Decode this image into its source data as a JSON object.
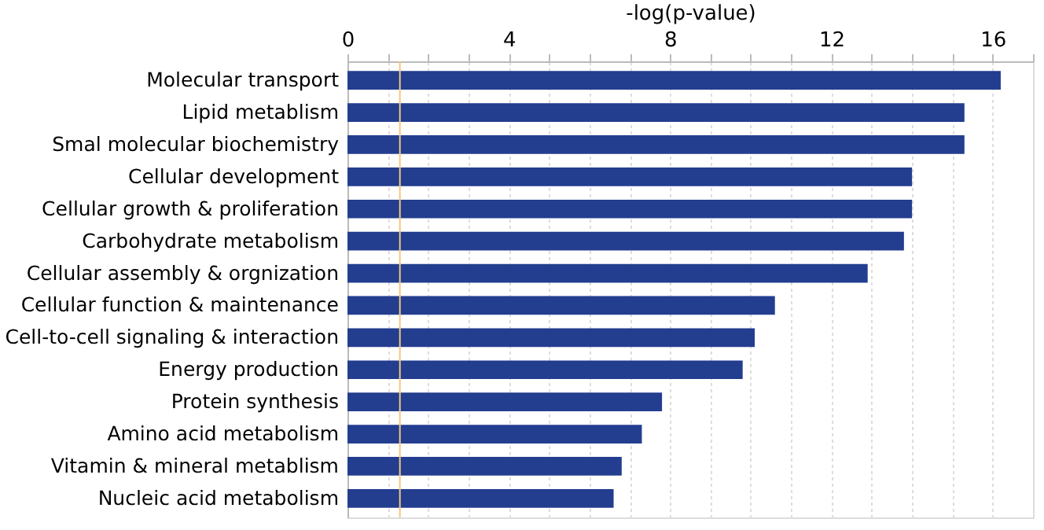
{
  "chart_data": {
    "type": "bar",
    "orientation": "horizontal",
    "xlabel": "-log(p-value)",
    "categories": [
      "Molecular transport",
      "Lipid metablism",
      "Smal molecular biochemistry",
      "Cellular development",
      "Cellular growth & proliferation",
      "Carbohydrate metabolism",
      "Cellular assembly & orgnization",
      "Cellular function & maintenance",
      "Cell-to-cell signaling & interaction",
      "Energy production",
      "Protein synthesis",
      "Amino acid metabolism",
      "Vitamin & mineral metablism",
      "Nucleic acid metabolism"
    ],
    "values": [
      16.2,
      15.3,
      15.3,
      14.0,
      14.0,
      13.8,
      12.9,
      10.6,
      10.1,
      9.8,
      7.8,
      7.3,
      6.8,
      6.6
    ],
    "color": "#233d8f",
    "xlim": [
      0,
      17
    ],
    "xticks": [
      0,
      {
        "value": 1,
        "label": null
      },
      {
        "value": 2,
        "label": null
      },
      {
        "value": 3,
        "label": null
      },
      4,
      {
        "value": 5,
        "label": null
      },
      {
        "value": 6,
        "label": null
      },
      {
        "value": 7,
        "label": null
      },
      8,
      {
        "value": 9,
        "label": null
      },
      {
        "value": 10,
        "label": null
      },
      {
        "value": 11,
        "label": null
      },
      12,
      {
        "value": 13,
        "label": null
      },
      {
        "value": 14,
        "label": null
      },
      {
        "value": 15,
        "label": null
      },
      16,
      {
        "value": 17,
        "label": null
      }
    ],
    "grid": "x",
    "ref_lines": [
      {
        "axis": "x",
        "value": 1.3,
        "color": "#f5c77e"
      }
    ]
  }
}
